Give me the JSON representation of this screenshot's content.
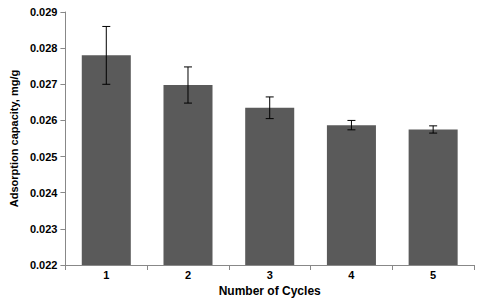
{
  "chart_data": {
    "type": "bar",
    "x_label": "Number of Cycles",
    "y_label": "Adsorption capacity, mg/g",
    "categories": [
      "1",
      "2",
      "3",
      "4",
      "5"
    ],
    "values": [
      0.0278,
      0.02698,
      0.02635,
      0.02587,
      0.02575
    ],
    "errors": [
      0.0008,
      0.0005,
      0.0003,
      0.00013,
      0.0001
    ],
    "color": "#5a5a5a",
    "ylim": [
      0.022,
      0.029
    ],
    "yticks": [
      0.022,
      0.023,
      0.024,
      0.025,
      0.026,
      0.027,
      0.028,
      0.029
    ],
    "grid": false
  }
}
